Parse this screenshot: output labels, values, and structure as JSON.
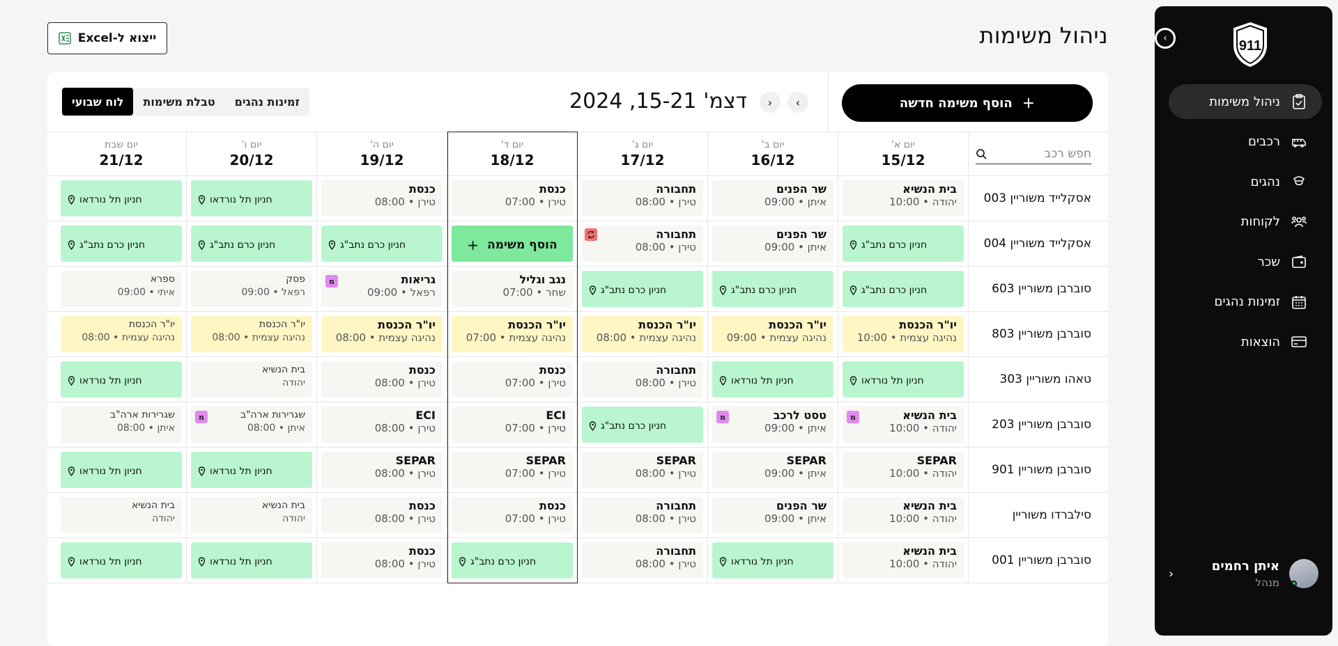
{
  "sidebar": {
    "logo_text": "911",
    "items": [
      {
        "label": "ניהול משימות",
        "icon": "clipboard-icon",
        "active": true
      },
      {
        "label": "רכבים",
        "icon": "bus-icon"
      },
      {
        "label": "נהגים",
        "icon": "driver-icon"
      },
      {
        "label": "לקוחות",
        "icon": "clients-icon"
      },
      {
        "label": "שכר",
        "icon": "wallet-icon"
      },
      {
        "label": "זמינות נהגים",
        "icon": "calendar-icon"
      },
      {
        "label": "הוצאות",
        "icon": "credit-card-icon"
      }
    ],
    "user": {
      "name": "איתן רחמים",
      "role": "מנהל"
    }
  },
  "header": {
    "title": "ניהול משימות",
    "export_label": "ייצוא ל-Excel"
  },
  "toolbar": {
    "add_task_label": "הוסף משימה חדשה",
    "date_range": "דצמ' 15-21, 2024",
    "views": [
      {
        "label": "לוח שבועי",
        "active": true
      },
      {
        "label": "טבלת משימות"
      },
      {
        "label": "זמינות נהגים"
      }
    ]
  },
  "search": {
    "placeholder": "חפש רכב"
  },
  "days": [
    {
      "name": "יום א'",
      "date": "15/12"
    },
    {
      "name": "יום ב'",
      "date": "16/12"
    },
    {
      "name": "יום ג'",
      "date": "17/12"
    },
    {
      "name": "יום ד'",
      "date": "18/12",
      "highlighted": true
    },
    {
      "name": "יום ה'",
      "date": "19/12"
    },
    {
      "name": "יום ו'",
      "date": "20/12"
    },
    {
      "name": "יום שבת",
      "date": "21/12"
    }
  ],
  "add_in_cell_label": "הוסף משימה",
  "rows": [
    {
      "vehicle": "אסקלייד משוריין 003",
      "cells": [
        {
          "type": "task",
          "title": "בית הנשיא",
          "sub": "יהודה • 10:00"
        },
        {
          "type": "task",
          "title": "שר הפנים",
          "sub": "איתן • 09:00"
        },
        {
          "type": "task",
          "title": "תחבורה",
          "sub": "טירן • 08:00"
        },
        {
          "type": "task",
          "title": "כנסת",
          "sub": "טירן • 07:00"
        },
        {
          "type": "task",
          "title": "כנסת",
          "sub": "טירן • 08:00"
        },
        {
          "type": "parking",
          "title": "חניון תל נורדאו"
        },
        {
          "type": "parking",
          "title": "חניון תל נורדאו"
        }
      ]
    },
    {
      "vehicle": "אסקלייד משוריין 004",
      "cells": [
        {
          "type": "parking",
          "title": "חניון כרם נתב\"ג"
        },
        {
          "type": "task",
          "title": "שר הפנים",
          "sub": "איתן • 09:00"
        },
        {
          "type": "task",
          "title": "תחבורה",
          "sub": "טירן • 08:00",
          "sync": true
        },
        {
          "type": "add"
        },
        {
          "type": "parking",
          "title": "חניון כרם נתב\"ג"
        },
        {
          "type": "parking",
          "title": "חניון כרם נתב\"ג"
        },
        {
          "type": "parking",
          "title": "חניון כרם נתב\"ג"
        }
      ]
    },
    {
      "vehicle": "סוברבן משוריין 603",
      "cells": [
        {
          "type": "parking",
          "title": "חניון כרם נתב\"ג"
        },
        {
          "type": "parking",
          "title": "חניון כרם נתב\"ג"
        },
        {
          "type": "parking",
          "title": "חניון כרם נתב\"ג"
        },
        {
          "type": "task",
          "title": "נגב וגליל",
          "sub": "שחר • 07:00"
        },
        {
          "type": "task",
          "title": "גריאות",
          "sub": "רפאל • 09:00",
          "m": true
        },
        {
          "type": "task",
          "variant": "light",
          "title": "פסק",
          "sub": "רפאל • 09:00"
        },
        {
          "type": "task",
          "variant": "light",
          "title": "ספרא",
          "sub": "איתי • 09:00"
        }
      ]
    },
    {
      "vehicle": "סוברבן משוריין 803",
      "cells": [
        {
          "type": "task",
          "variant": "yellow",
          "title": "יו\"ר הכנסת",
          "sub": "נהיגה עצמית • 10:00"
        },
        {
          "type": "task",
          "variant": "yellow",
          "title": "יו\"ר הכנסת",
          "sub": "נהיגה עצמית • 09:00"
        },
        {
          "type": "task",
          "variant": "yellow",
          "title": "יו\"ר הכנסת",
          "sub": "נהיגה עצמית • 08:00"
        },
        {
          "type": "task",
          "variant": "yellow",
          "title": "יו\"ר הכנסת",
          "sub": "נהיגה עצמית • 07:00"
        },
        {
          "type": "task",
          "variant": "yellow",
          "title": "יו\"ר הכנסת",
          "sub": "נהיגה עצמית • 08:00"
        },
        {
          "type": "task",
          "variant": "yellow light",
          "title": "יו\"ר הכנסת",
          "sub": "נהיגה עצמית • 08:00"
        },
        {
          "type": "task",
          "variant": "yellow light",
          "title": "יו\"ר הכנסת",
          "sub": "נהיגה עצמית • 08:00"
        }
      ]
    },
    {
      "vehicle": "טאהו משוריין 303",
      "cells": [
        {
          "type": "parking",
          "title": "חניון תל נורדאו"
        },
        {
          "type": "parking",
          "title": "חניון תל נורדאו"
        },
        {
          "type": "task",
          "title": "תחבורה",
          "sub": "טירן • 08:00"
        },
        {
          "type": "task",
          "title": "כנסת",
          "sub": "טירן • 07:00"
        },
        {
          "type": "task",
          "title": "כנסת",
          "sub": "טירן • 08:00"
        },
        {
          "type": "task",
          "variant": "light",
          "title": "בית הנשיא",
          "sub": "יהודה"
        },
        {
          "type": "parking",
          "title": "חניון תל נורדאו"
        }
      ]
    },
    {
      "vehicle": "סוברבן משוריין 203",
      "cells": [
        {
          "type": "task",
          "title": "בית הנשיא",
          "sub": "יהודה • 10:00",
          "m": true
        },
        {
          "type": "task",
          "title": "טסט לרכב",
          "sub": "איתן • 09:00",
          "m": true
        },
        {
          "type": "parking",
          "title": "חניון כרם נתב\"ג"
        },
        {
          "type": "task",
          "title": "ECI",
          "sub": "טירן • 07:00"
        },
        {
          "type": "task",
          "title": "ECI",
          "sub": "טירן • 08:00"
        },
        {
          "type": "task",
          "variant": "light",
          "title": "שגרירות ארה\"ב",
          "sub": "איתן • 08:00",
          "m": true
        },
        {
          "type": "task",
          "variant": "light",
          "title": "שגרירות ארה\"ב",
          "sub": "איתן • 08:00"
        }
      ]
    },
    {
      "vehicle": "סוברבן משוריין 901",
      "cells": [
        {
          "type": "task",
          "title": "SEPAR",
          "sub": "יהודה • 10:00"
        },
        {
          "type": "task",
          "title": "SEPAR",
          "sub": "איתן • 09:00"
        },
        {
          "type": "task",
          "title": "SEPAR",
          "sub": "טירן • 08:00"
        },
        {
          "type": "task",
          "title": "SEPAR",
          "sub": "טירן • 07:00"
        },
        {
          "type": "task",
          "title": "SEPAR",
          "sub": "טירן • 08:00"
        },
        {
          "type": "parking",
          "title": "חניון תל נורדאו"
        },
        {
          "type": "parking",
          "title": "חניון תל נורדאו"
        }
      ]
    },
    {
      "vehicle": "סילברדו משוריין",
      "cells": [
        {
          "type": "task",
          "title": "בית הנשיא",
          "sub": "יהודה • 10:00"
        },
        {
          "type": "task",
          "title": "שר הפנים",
          "sub": "איתן • 09:00"
        },
        {
          "type": "task",
          "title": "תחבורה",
          "sub": "טירן • 08:00"
        },
        {
          "type": "task",
          "title": "כנסת",
          "sub": "טירן • 07:00"
        },
        {
          "type": "task",
          "title": "כנסת",
          "sub": "טירן • 08:00"
        },
        {
          "type": "task",
          "variant": "light",
          "title": "בית הנשיא",
          "sub": "יהודה"
        },
        {
          "type": "task",
          "variant": "light",
          "title": "בית הנשיא",
          "sub": "יהודה"
        }
      ]
    },
    {
      "vehicle": "סוברבן משוריין 001",
      "cells": [
        {
          "type": "task",
          "title": "בית הנשיא",
          "sub": "יהודה • 10:00"
        },
        {
          "type": "parking",
          "title": "חניון תל נורדאו"
        },
        {
          "type": "task",
          "title": "תחבורה",
          "sub": "טירן • 08:00"
        },
        {
          "type": "parking",
          "title": "חניון כרם נתב\"ג"
        },
        {
          "type": "task",
          "title": "כנסת",
          "sub": "טירן • 08:00"
        },
        {
          "type": "parking",
          "title": "חניון תל נורדאו"
        },
        {
          "type": "parking",
          "title": "חניון תל נורדאו"
        }
      ]
    }
  ],
  "colors": {
    "parking": "#b9f6cf",
    "yellow": "#fff6c4",
    "task": "#f6f6f3",
    "add": "#7ee89c",
    "m_badge": "#e08af0",
    "sync_badge": "#f07070"
  }
}
